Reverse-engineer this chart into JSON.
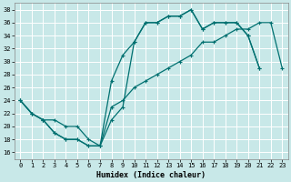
{
  "xlabel": "Humidex (Indice chaleur)",
  "bg_color": "#c8e8e8",
  "grid_color": "#ffffff",
  "line_color": "#007070",
  "xlim": [
    -0.5,
    23.5
  ],
  "ylim": [
    15,
    39
  ],
  "xticks": [
    0,
    1,
    2,
    3,
    4,
    5,
    6,
    7,
    8,
    9,
    10,
    11,
    12,
    13,
    14,
    15,
    16,
    17,
    18,
    19,
    20,
    21,
    22,
    23
  ],
  "yticks": [
    16,
    18,
    20,
    22,
    24,
    26,
    28,
    30,
    32,
    34,
    36,
    38
  ],
  "line1_x": [
    0,
    1,
    2,
    3,
    4,
    5,
    6,
    7,
    8,
    9,
    10,
    11,
    12,
    13,
    14,
    15,
    16,
    17,
    18,
    19,
    20,
    21
  ],
  "line1_y": [
    24,
    22,
    21,
    19,
    18,
    18,
    17,
    17,
    27,
    31,
    33,
    36,
    36,
    37,
    37,
    38,
    35,
    36,
    36,
    36,
    34,
    29
  ],
  "line2_x": [
    0,
    1,
    2,
    3,
    4,
    5,
    6,
    7,
    8,
    9,
    10,
    11,
    12,
    13,
    14,
    15,
    16,
    17,
    18,
    19,
    20,
    21
  ],
  "line2_y": [
    24,
    22,
    21,
    19,
    18,
    18,
    17,
    17,
    21,
    23,
    33,
    36,
    36,
    37,
    37,
    38,
    35,
    36,
    36,
    36,
    34,
    29
  ],
  "line3_x": [
    0,
    1,
    2,
    3,
    4,
    5,
    6,
    7,
    8,
    9,
    10,
    11,
    12,
    13,
    14,
    15,
    16,
    17,
    18,
    19,
    20,
    21,
    22,
    23
  ],
  "line3_y": [
    24,
    22,
    21,
    21,
    20,
    20,
    18,
    17,
    23,
    24,
    26,
    27,
    28,
    29,
    30,
    31,
    33,
    33,
    34,
    35,
    35,
    36,
    36,
    29
  ]
}
